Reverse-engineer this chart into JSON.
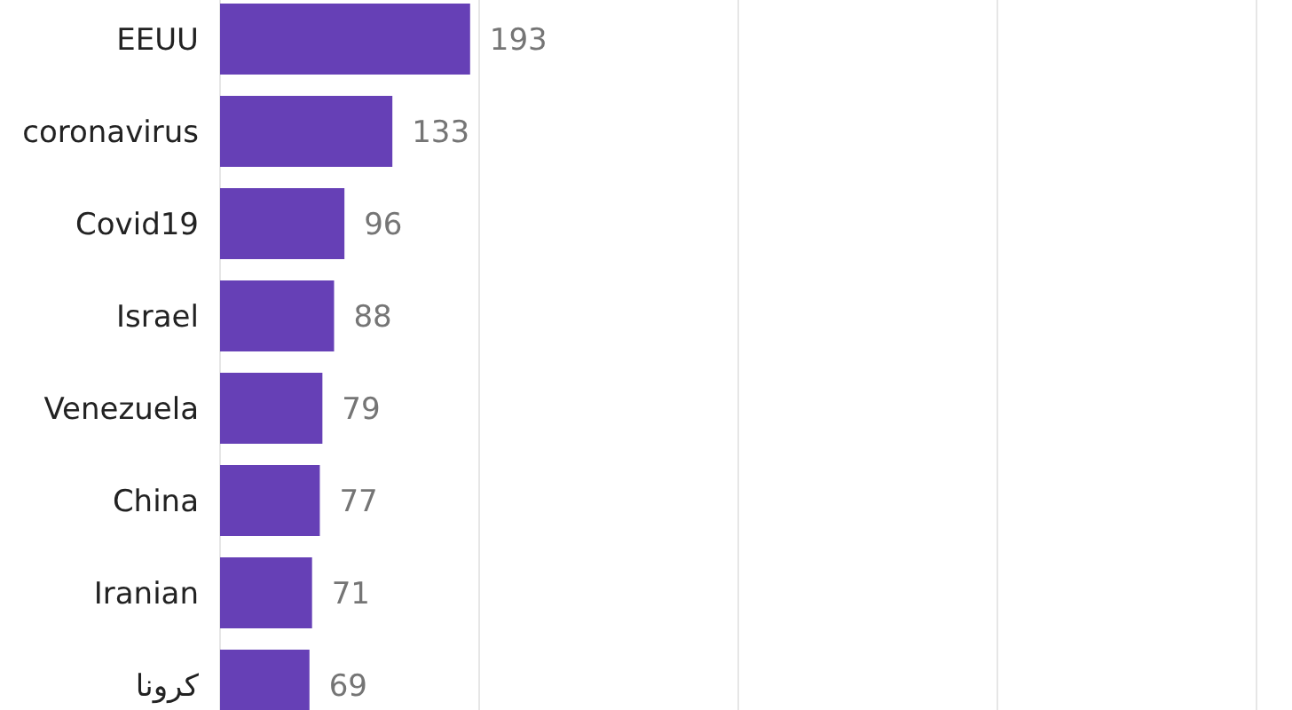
{
  "chart_data": {
    "type": "bar",
    "orientation": "horizontal",
    "categories": [
      "EEUU",
      "coronavirus",
      "Covid19",
      "Israel",
      "Venezuela",
      "China",
      "Iranian",
      "كرونا"
    ],
    "values": [
      193,
      133,
      96,
      88,
      79,
      77,
      71,
      69
    ],
    "value_labels": [
      "193",
      "133",
      "96",
      "88",
      "79",
      "77",
      "71",
      "69"
    ],
    "color": "#6640b6",
    "xlim": [
      0,
      800
    ],
    "xticks": [
      {
        "value": 0,
        "label": null
      },
      {
        "value": 200,
        "label": null
      },
      {
        "value": 400,
        "label": null
      },
      {
        "value": 600,
        "label": null
      },
      {
        "value": 800,
        "label": null
      }
    ],
    "grid": "x"
  }
}
